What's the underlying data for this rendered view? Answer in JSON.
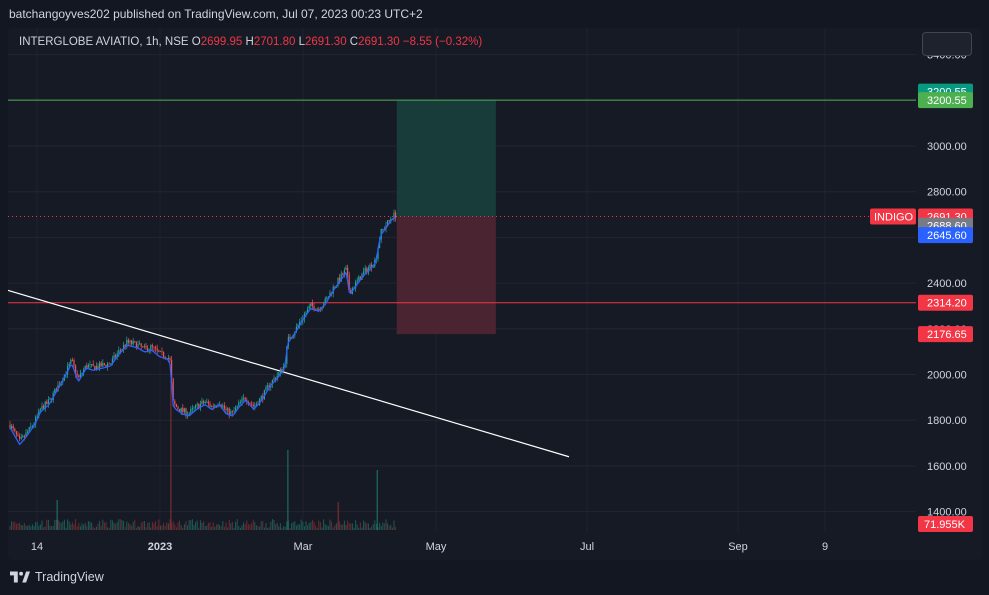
{
  "header": {
    "publisher_line": "batchangoyves202 published on TradingView.com, Jul 07, 2023 00:23 UTC+2"
  },
  "legend": {
    "symbol": "INTERGLOBE AVIATIO, 1h, NSE",
    "open_label": "O",
    "open": "2699.95",
    "high_label": "H",
    "high": "2701.80",
    "low_label": "L",
    "low": "2691.30",
    "close_label": "C",
    "close": "2691.30",
    "change": "−8.55 (−0.32%)"
  },
  "footer": {
    "brand": "TradingView"
  },
  "colors": {
    "background": "#131722",
    "up": "#26a69a",
    "down": "#ef5350",
    "target_zone": "#173c3a",
    "stop_zone": "#4a2430",
    "target_line": "#4caf50",
    "stop_line": "#f23645",
    "trendline": "#ffffff",
    "moving_average": "#2962ff"
  },
  "chart_data": {
    "type": "candlestick",
    "symbol": "INDIGO",
    "interval": "1h",
    "exchange": "NSE",
    "x_tick_labels": [
      "14",
      "2023",
      "Mar",
      "May",
      "Jul",
      "Sep",
      "9"
    ],
    "y_tick_labels": [
      "1400.00",
      "1600.00",
      "1800.00",
      "2000.00",
      "2200.00",
      "2400.00",
      "2600.00",
      "2800.00",
      "3000.00",
      "3200.00",
      "3400.00"
    ],
    "ylim": [
      1330,
      3540
    ],
    "price_path": [
      [
        "2022-11-10",
        1780
      ],
      [
        "2022-11-16",
        1705
      ],
      [
        "2022-11-20",
        1740
      ],
      [
        "2022-11-25",
        1790
      ],
      [
        "2022-11-29",
        1850
      ],
      [
        "2022-12-04",
        1880
      ],
      [
        "2022-12-08",
        1930
      ],
      [
        "2022-12-12",
        1980
      ],
      [
        "2022-12-18",
        2060
      ],
      [
        "2022-12-22",
        1980
      ],
      [
        "2022-12-27",
        2040
      ],
      [
        "2022-12-31",
        2030
      ],
      [
        "2023-01-06",
        2040
      ],
      [
        "2023-01-11",
        2050
      ],
      [
        "2023-01-16",
        2100
      ],
      [
        "2023-01-21",
        2140
      ],
      [
        "2023-01-27",
        2130
      ],
      [
        "2023-02-01",
        2110
      ],
      [
        "2023-02-05",
        2120
      ],
      [
        "2023-02-10",
        2090
      ],
      [
        "2023-02-15",
        2080
      ],
      [
        "2023-02-17",
        2050
      ],
      [
        "2023-02-18",
        1880
      ],
      [
        "2023-02-20",
        1860
      ],
      [
        "2023-02-24",
        1840
      ],
      [
        "2023-02-28",
        1830
      ],
      [
        "2023-03-05",
        1860
      ],
      [
        "2023-03-10",
        1880
      ],
      [
        "2023-03-14",
        1860
      ],
      [
        "2023-03-19",
        1880
      ],
      [
        "2023-03-23",
        1840
      ],
      [
        "2023-03-27",
        1830
      ],
      [
        "2023-03-31",
        1870
      ],
      [
        "2023-04-04",
        1900
      ],
      [
        "2023-04-09",
        1860
      ],
      [
        "2023-04-14",
        1900
      ],
      [
        "2023-04-19",
        1960
      ],
      [
        "2023-04-24",
        2000
      ],
      [
        "2023-04-28",
        2040
      ],
      [
        "2023-04-30",
        2150
      ],
      [
        "2023-05-05",
        2200
      ],
      [
        "2023-05-10",
        2260
      ],
      [
        "2023-05-14",
        2300
      ],
      [
        "2023-05-19",
        2290
      ],
      [
        "2023-05-23",
        2320
      ],
      [
        "2023-05-28",
        2380
      ],
      [
        "2023-06-01",
        2420
      ],
      [
        "2023-06-05",
        2460
      ],
      [
        "2023-06-07",
        2360
      ],
      [
        "2023-06-11",
        2400
      ],
      [
        "2023-06-15",
        2440
      ],
      [
        "2023-06-19",
        2470
      ],
      [
        "2023-06-23",
        2500
      ],
      [
        "2023-06-26",
        2620
      ],
      [
        "2023-06-29",
        2650
      ],
      [
        "2023-07-03",
        2690
      ],
      [
        "2023-07-05",
        2700
      ],
      [
        "2023-07-06",
        2691.3
      ]
    ],
    "volume_spike_dates": [
      "2022-12-09",
      "2023-02-17",
      "2023-04-30",
      "2023-05-31",
      "2023-06-24"
    ],
    "horizontal_lines": [
      {
        "price": 3200.55,
        "color": "#4caf50"
      },
      {
        "price": 2314.2,
        "color": "#f23645"
      }
    ],
    "trendline": {
      "from": [
        "2022-11-08",
        2370
      ],
      "to": [
        "2023-10-20",
        1640
      ]
    },
    "position_tool": {
      "start_date": "2023-07-06",
      "end_date": "2023-09-05",
      "entry": 2691.3,
      "target": 3200.55,
      "stop": 2176.65
    },
    "price_labels": [
      {
        "text": "3200.55",
        "price": 3238,
        "color": "#089981"
      },
      {
        "text": "3200.55",
        "price": 3200.55,
        "color": "#4caf50"
      },
      {
        "text": "2691.30",
        "price": 2691.3,
        "color": "#f23645",
        "tag": "INDIGO"
      },
      {
        "text": "2688.60",
        "price": 2651,
        "color": "#787b86"
      },
      {
        "text": "2645.60",
        "price": 2610,
        "color": "#2962ff"
      },
      {
        "text": "2314.20",
        "price": 2314.2,
        "color": "#f23645"
      },
      {
        "text": "2176.65",
        "price": 2176.65,
        "color": "#f23645"
      }
    ],
    "volume_label": "71.955K"
  }
}
